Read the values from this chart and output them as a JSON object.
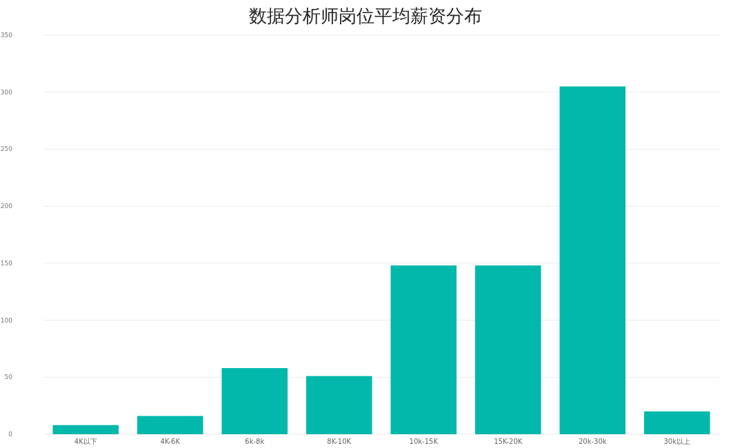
{
  "chart_data": {
    "type": "bar",
    "title": "数据分析师岗位平均薪资分布",
    "categories": [
      "4K以下",
      "4K-6K",
      "6k-8k",
      "8K-10K",
      "10k-15K",
      "15K-20K",
      "20k-30k",
      "30k以上"
    ],
    "values": [
      8,
      16,
      58,
      51,
      148,
      148,
      305,
      20
    ],
    "color": "#01b8aa",
    "ylim": [
      0,
      350
    ],
    "yticks": [
      0,
      50,
      100,
      150,
      200,
      250,
      300,
      350
    ],
    "grid": "y"
  }
}
